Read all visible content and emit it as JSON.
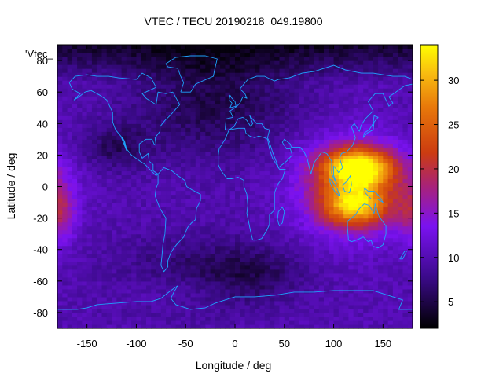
{
  "chart_data": {
    "type": "heatmap",
    "title": "VTEC / TECU 20190218_049.19800",
    "xlabel": "Longitude / deg",
    "ylabel": "Latitude / deg",
    "plot_key_label": "'Vtec_",
    "xlim": [
      -180,
      180
    ],
    "ylim": [
      -90,
      90
    ],
    "x_ticks": [
      -150,
      -100,
      -50,
      0,
      50,
      100,
      150
    ],
    "y_ticks": [
      -80,
      -60,
      -40,
      -20,
      0,
      20,
      40,
      60,
      80
    ],
    "colorbar": {
      "range": [
        2,
        34
      ],
      "ticks": [
        5,
        10,
        15,
        20,
        25,
        30
      ],
      "palette": "black-purple-red-orange-yellow"
    },
    "grid": false,
    "overlay": "continent outlines (cyan)",
    "vtec_features": [
      {
        "name": "equatorial anomaly peak (SE Asia / Australia)",
        "lon": 125,
        "lat": 12,
        "tecu": 32
      },
      {
        "name": "southern crest over Australia",
        "lon": 122,
        "lat": -12,
        "tecu": 30
      },
      {
        "name": "Pacific enhancement",
        "lon": -178,
        "lat": -15,
        "tecu": 17
      },
      {
        "name": "background low latitudes",
        "tecu": 10
      },
      {
        "name": "polar / night minimum",
        "tecu": 4
      }
    ]
  }
}
